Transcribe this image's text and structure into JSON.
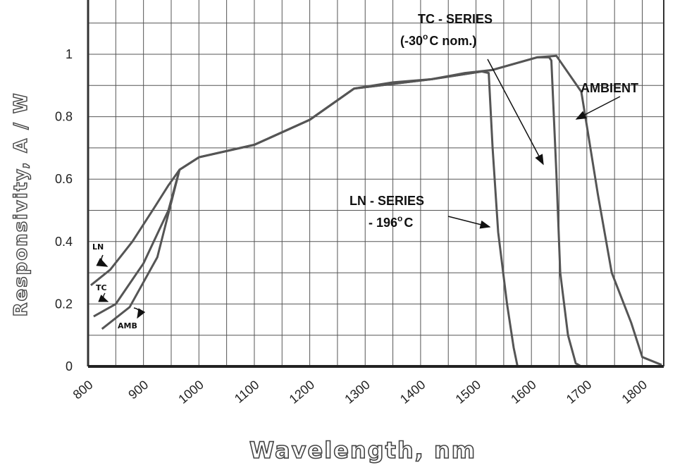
{
  "chart_data": {
    "type": "line",
    "title": "",
    "xlabel": "Wavelength, nm",
    "ylabel": "Responsivity, A / W",
    "xlim": [
      800,
      1850
    ],
    "ylim": [
      0,
      1.1
    ],
    "grid": true,
    "x_ticks": [
      "800",
      "900",
      "1000",
      "1100",
      "1200",
      "1300",
      "1400",
      "1500",
      "1600",
      "1700",
      "1800"
    ],
    "y_ticks": [
      "0",
      "0.2",
      "0.4",
      "0.6",
      "0.8",
      "1"
    ],
    "series": [
      {
        "name": "AMBIENT",
        "color": "#555555",
        "points": [
          [
            825,
            0.12
          ],
          [
            875,
            0.19
          ],
          [
            925,
            0.35
          ],
          [
            965,
            0.63
          ],
          [
            1000,
            0.67
          ],
          [
            1050,
            0.69
          ],
          [
            1100,
            0.71
          ],
          [
            1150,
            0.75
          ],
          [
            1200,
            0.79
          ],
          [
            1280,
            0.89
          ],
          [
            1350,
            0.91
          ],
          [
            1420,
            0.92
          ],
          [
            1480,
            0.94
          ],
          [
            1530,
            0.95
          ],
          [
            1570,
            0.97
          ],
          [
            1610,
            0.99
          ],
          [
            1645,
            0.995
          ],
          [
            1690,
            0.88
          ],
          [
            1700,
            0.77
          ],
          [
            1720,
            0.55
          ],
          [
            1745,
            0.3
          ],
          [
            1780,
            0.14
          ],
          [
            1800,
            0.03
          ],
          [
            1835,
            0.005
          ]
        ]
      },
      {
        "name": "TC - SERIES",
        "color": "#555555",
        "points": [
          [
            810,
            0.16
          ],
          [
            850,
            0.2
          ],
          [
            900,
            0.33
          ],
          [
            945,
            0.5
          ],
          [
            965,
            0.63
          ],
          [
            1000,
            0.67
          ],
          [
            1100,
            0.71
          ],
          [
            1200,
            0.79
          ],
          [
            1280,
            0.89
          ],
          [
            1420,
            0.92
          ],
          [
            1530,
            0.95
          ],
          [
            1610,
            0.99
          ],
          [
            1632,
            0.99
          ],
          [
            1636,
            0.98
          ],
          [
            1645,
            0.62
          ],
          [
            1652,
            0.3
          ],
          [
            1666,
            0.1
          ],
          [
            1680,
            0.01
          ],
          [
            1690,
            0.0
          ]
        ]
      },
      {
        "name": "LN - SERIES",
        "color": "#555555",
        "points": [
          [
            805,
            0.26
          ],
          [
            840,
            0.31
          ],
          [
            880,
            0.4
          ],
          [
            920,
            0.51
          ],
          [
            945,
            0.58
          ],
          [
            965,
            0.63
          ],
          [
            1000,
            0.67
          ],
          [
            1100,
            0.71
          ],
          [
            1200,
            0.79
          ],
          [
            1280,
            0.89
          ],
          [
            1420,
            0.92
          ],
          [
            1510,
            0.945
          ],
          [
            1523,
            0.94
          ],
          [
            1530,
            0.7
          ],
          [
            1540,
            0.43
          ],
          [
            1556,
            0.2
          ],
          [
            1568,
            0.06
          ],
          [
            1575,
            0.0
          ]
        ]
      }
    ],
    "annotations": {
      "tc_line1": "TC - SERIES",
      "tc_line2a": "(-30",
      "tc_sup": "o",
      "tc_line2b": "C nom.)",
      "ambient": "AMBIENT",
      "ln_line1": "LN - SERIES",
      "ln_line2a": "- 196",
      "ln_sup": "o",
      "ln_line2b": "C",
      "ln_small": "LN",
      "tc_small": "TC",
      "amb_small": "AMB"
    }
  }
}
